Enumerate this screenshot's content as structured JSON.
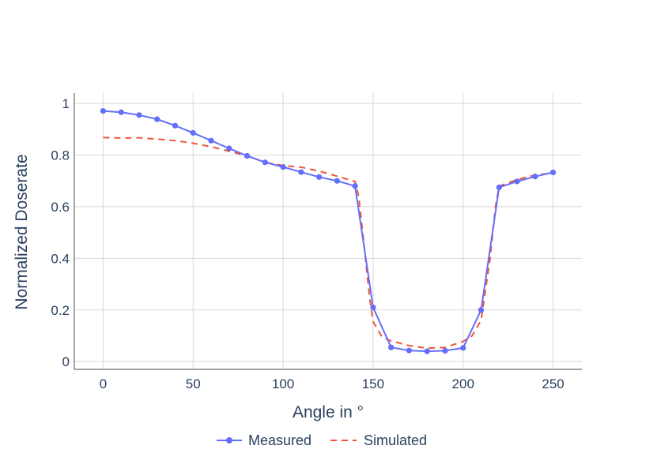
{
  "chart_data": {
    "type": "line",
    "xlabel": "Angle in °",
    "ylabel": "Normalized Doserate",
    "xlim": [
      -16,
      266
    ],
    "ylim": [
      -0.03,
      1.04
    ],
    "x_ticks": [
      0,
      50,
      100,
      150,
      200,
      250
    ],
    "y_ticks": [
      0,
      0.2,
      0.4,
      0.6,
      0.8,
      1
    ],
    "x_tick_labels": [
      "0",
      "50",
      "100",
      "150",
      "200",
      "250"
    ],
    "y_tick_labels": [
      "0",
      "0.2",
      "0.4",
      "0.6",
      "0.8",
      "1"
    ],
    "grid": true,
    "legend_position": "bottom-center",
    "series": [
      {
        "name": "Measured",
        "color": "#636efa",
        "style": "solid-markers",
        "x": [
          0,
          10,
          20,
          30,
          40,
          50,
          60,
          70,
          80,
          90,
          100,
          110,
          120,
          130,
          140,
          150,
          160,
          170,
          180,
          190,
          200,
          210,
          220,
          230,
          240,
          250
        ],
        "y": [
          0.971,
          0.966,
          0.955,
          0.939,
          0.914,
          0.886,
          0.856,
          0.826,
          0.797,
          0.772,
          0.754,
          0.734,
          0.715,
          0.7,
          0.68,
          0.21,
          0.055,
          0.043,
          0.04,
          0.042,
          0.053,
          0.2,
          0.675,
          0.698,
          0.717,
          0.733
        ]
      },
      {
        "name": "Simulated",
        "color": "#ef553b",
        "style": "dash",
        "x": [
          0,
          10,
          20,
          30,
          40,
          50,
          60,
          70,
          80,
          90,
          100,
          110,
          120,
          130,
          140,
          142,
          145,
          148,
          150,
          155,
          160,
          170,
          180,
          190,
          200,
          205,
          210,
          215,
          218,
          220,
          230,
          240,
          250
        ],
        "y": [
          0.868,
          0.866,
          0.867,
          0.862,
          0.856,
          0.846,
          0.832,
          0.815,
          0.797,
          0.772,
          0.759,
          0.753,
          0.738,
          0.718,
          0.698,
          0.64,
          0.45,
          0.25,
          0.155,
          0.095,
          0.08,
          0.062,
          0.052,
          0.055,
          0.078,
          0.1,
          0.16,
          0.4,
          0.6,
          0.68,
          0.705,
          0.723,
          0.73
        ]
      }
    ]
  }
}
